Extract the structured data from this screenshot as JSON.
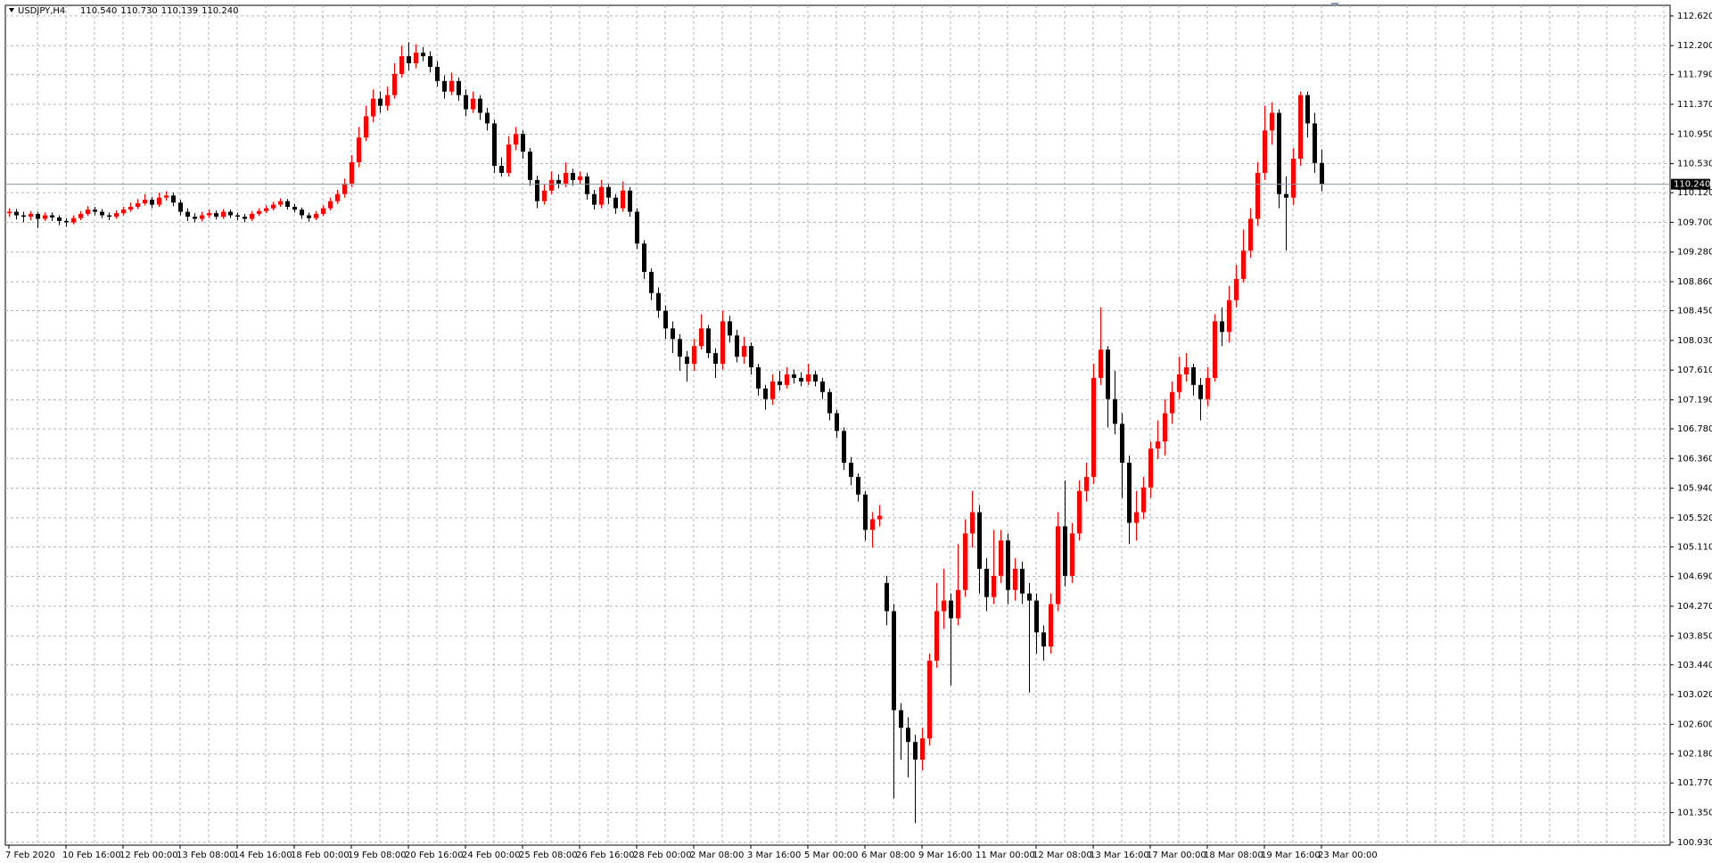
{
  "chart_data": {
    "type": "candlestick",
    "title": "USDJPY,H4",
    "ohlc_labels": [
      "110.540",
      "110.730",
      "110.139",
      "110.240"
    ],
    "up_color": "#ff0000",
    "down_color": "#000000",
    "grid": true,
    "ylim": [
      100.89,
      112.77
    ],
    "yticks": [
      {
        "value": 112.62,
        "label": "112.620"
      },
      {
        "value": 112.2,
        "label": "112.200"
      },
      {
        "value": 111.79,
        "label": "111.790"
      },
      {
        "value": 111.37,
        "label": "111.370"
      },
      {
        "value": 110.95,
        "label": "110.950"
      },
      {
        "value": 110.53,
        "label": "110.530"
      },
      {
        "value": 110.12,
        "label": "110.120"
      },
      {
        "value": 109.7,
        "label": "109.700"
      },
      {
        "value": 109.28,
        "label": "109.280"
      },
      {
        "value": 108.86,
        "label": "108.860"
      },
      {
        "value": 108.45,
        "label": "108.450"
      },
      {
        "value": 108.03,
        "label": "108.030"
      },
      {
        "value": 107.61,
        "label": "107.610"
      },
      {
        "value": 107.19,
        "label": "107.190"
      },
      {
        "value": 106.78,
        "label": "106.780"
      },
      {
        "value": 106.36,
        "label": "106.360"
      },
      {
        "value": 105.94,
        "label": "105.940"
      },
      {
        "value": 105.52,
        "label": "105.520"
      },
      {
        "value": 105.11,
        "label": "105.110"
      },
      {
        "value": 104.69,
        "label": "104.690"
      },
      {
        "value": 104.27,
        "label": "104.270"
      },
      {
        "value": 103.85,
        "label": "103.850"
      },
      {
        "value": 103.44,
        "label": "103.440"
      },
      {
        "value": 103.02,
        "label": "103.020"
      },
      {
        "value": 102.6,
        "label": "102.600"
      },
      {
        "value": 102.18,
        "label": "102.180"
      },
      {
        "value": 101.77,
        "label": "101.770"
      },
      {
        "value": 101.35,
        "label": "101.350"
      },
      {
        "value": 100.93,
        "label": "100.930"
      }
    ],
    "bid": {
      "value": 110.24,
      "label": "110.240"
    },
    "categories": [
      "7 Feb 2020",
      null,
      null,
      null,
      null,
      null,
      null,
      null,
      "10 Feb 16:00",
      null,
      null,
      null,
      null,
      null,
      null,
      null,
      "12 Feb 00:00",
      null,
      null,
      null,
      null,
      null,
      null,
      null,
      "13 Feb 08:00",
      null,
      null,
      null,
      null,
      null,
      null,
      null,
      "14 Feb 16:00",
      null,
      null,
      null,
      null,
      null,
      null,
      null,
      "18 Feb 00:00",
      null,
      null,
      null,
      null,
      null,
      null,
      null,
      "19 Feb 08:00",
      null,
      null,
      null,
      null,
      null,
      null,
      null,
      "20 Feb 16:00",
      null,
      null,
      null,
      null,
      null,
      null,
      null,
      "24 Feb 00:00",
      null,
      null,
      null,
      null,
      null,
      null,
      null,
      "25 Feb 08:00",
      null,
      null,
      null,
      null,
      null,
      null,
      null,
      "26 Feb 16:00",
      null,
      null,
      null,
      null,
      null,
      null,
      null,
      "28 Feb 00:00",
      null,
      null,
      null,
      null,
      null,
      null,
      null,
      "2 Mar 08:00",
      null,
      null,
      null,
      null,
      null,
      null,
      null,
      "3 Mar 16:00",
      null,
      null,
      null,
      null,
      null,
      null,
      null,
      "5 Mar 00:00",
      null,
      null,
      null,
      null,
      null,
      null,
      null,
      "6 Mar 08:00",
      null,
      null,
      null,
      null,
      null,
      null,
      null,
      "9 Mar 16:00",
      null,
      null,
      null,
      null,
      null,
      null,
      null,
      "11 Mar 00:00",
      null,
      null,
      null,
      null,
      null,
      null,
      null,
      "12 Mar 08:00",
      null,
      null,
      null,
      null,
      null,
      null,
      null,
      "13 Mar 16:00",
      null,
      null,
      null,
      null,
      null,
      null,
      null,
      "17 Mar 00:00",
      null,
      null,
      null,
      null,
      null,
      null,
      null,
      "18 Mar 08:00",
      null,
      null,
      null,
      null,
      null,
      null,
      null,
      "19 Mar 16:00",
      null,
      null,
      null,
      null,
      null,
      null,
      null,
      "23 Mar 00:00"
    ],
    "open": [
      109.83,
      109.85,
      109.8,
      109.78,
      109.82,
      109.75,
      109.8,
      109.77,
      109.72,
      109.7,
      109.76,
      109.82,
      109.88,
      109.85,
      109.8,
      109.78,
      109.83,
      109.88,
      109.92,
      109.97,
      110.02,
      109.95,
      110.05,
      110.08,
      109.98,
      109.85,
      109.78,
      109.75,
      109.8,
      109.83,
      109.78,
      109.85,
      109.8,
      109.78,
      109.75,
      109.82,
      109.86,
      109.9,
      109.95,
      110.0,
      109.92,
      109.88,
      109.8,
      109.76,
      109.82,
      109.9,
      110.0,
      110.1,
      110.25,
      110.55,
      110.9,
      111.2,
      111.45,
      111.35,
      111.5,
      111.8,
      112.05,
      111.95,
      112.1,
      112.05,
      111.9,
      111.7,
      111.55,
      111.7,
      111.5,
      111.3,
      111.45,
      111.25,
      111.1,
      110.5,
      110.4,
      110.8,
      110.95,
      110.7,
      110.3,
      110.0,
      110.15,
      110.3,
      110.25,
      110.4,
      110.3,
      110.35,
      110.1,
      109.95,
      110.2,
      110.05,
      109.9,
      110.15,
      109.85,
      109.4,
      109.0,
      108.7,
      108.45,
      108.2,
      108.05,
      107.8,
      107.7,
      107.95,
      108.2,
      107.85,
      107.7,
      108.3,
      108.1,
      107.8,
      107.95,
      107.65,
      107.35,
      107.2,
      107.45,
      107.4,
      107.55,
      107.5,
      107.45,
      107.55,
      107.45,
      107.3,
      107.0,
      106.75,
      106.3,
      106.1,
      105.85,
      105.35,
      105.5,
      104.6,
      104.2,
      102.8,
      102.55,
      102.35,
      102.1,
      102.4,
      103.5,
      104.2,
      104.35,
      104.1,
      104.5,
      105.3,
      105.6,
      104.8,
      104.4,
      104.7,
      105.2,
      104.5,
      104.8,
      104.45,
      104.35,
      103.9,
      103.7,
      104.3,
      105.4,
      104.7,
      105.3,
      105.9,
      106.1,
      107.5,
      107.9,
      107.2,
      106.85,
      106.3,
      105.45,
      105.6,
      105.95,
      106.5,
      106.6,
      107.0,
      107.3,
      107.55,
      107.65,
      107.4,
      107.2,
      107.5,
      108.3,
      108.15,
      108.6,
      108.9,
      109.3,
      109.75,
      110.4,
      111.0,
      111.25,
      110.1,
      110.05,
      110.6,
      111.5,
      111.1,
      110.54
    ],
    "high": [
      109.9,
      109.89,
      109.85,
      109.86,
      109.85,
      109.84,
      109.84,
      109.8,
      109.76,
      109.8,
      109.86,
      109.93,
      109.92,
      109.89,
      109.84,
      109.87,
      109.92,
      109.98,
      110.03,
      110.1,
      110.06,
      110.12,
      110.14,
      110.12,
      110.02,
      109.9,
      109.83,
      109.85,
      109.88,
      109.87,
      109.89,
      109.88,
      109.84,
      109.82,
      109.86,
      109.9,
      109.94,
      109.99,
      110.04,
      110.03,
      109.96,
      109.91,
      109.84,
      109.86,
      109.94,
      110.05,
      110.16,
      110.32,
      110.65,
      111.05,
      111.35,
      111.58,
      111.55,
      111.62,
      111.95,
      112.2,
      112.25,
      112.22,
      112.18,
      112.12,
      111.98,
      111.78,
      111.82,
      111.75,
      111.58,
      111.55,
      111.5,
      111.32,
      111.15,
      110.62,
      110.92,
      111.05,
      111.0,
      110.75,
      110.36,
      110.25,
      110.42,
      110.38,
      110.55,
      110.46,
      110.42,
      110.4,
      110.16,
      110.3,
      110.25,
      110.1,
      110.28,
      110.2,
      109.9,
      109.45,
      109.05,
      108.78,
      108.52,
      108.3,
      108.12,
      107.88,
      108.05,
      108.4,
      108.25,
      107.92,
      108.45,
      108.38,
      108.18,
      108.08,
      108.0,
      107.7,
      107.4,
      107.55,
      107.6,
      107.65,
      107.62,
      107.58,
      107.7,
      107.6,
      107.5,
      107.35,
      107.05,
      106.8,
      106.38,
      106.15,
      105.9,
      105.6,
      105.7,
      104.7,
      104.3,
      102.9,
      102.7,
      102.45,
      102.55,
      103.6,
      104.6,
      104.8,
      104.45,
      105.15,
      105.5,
      105.9,
      105.7,
      104.95,
      105.35,
      105.35,
      105.3,
      104.95,
      104.9,
      104.6,
      104.45,
      104.0,
      104.45,
      105.6,
      106.05,
      105.45,
      106.05,
      106.3,
      107.7,
      108.5,
      107.95,
      107.6,
      107.0,
      106.4,
      105.9,
      106.1,
      106.6,
      106.9,
      107.2,
      107.45,
      107.8,
      107.85,
      107.7,
      107.5,
      107.65,
      108.4,
      108.5,
      108.8,
      109.1,
      109.6,
      109.9,
      110.55,
      111.35,
      111.4,
      111.3,
      110.35,
      110.75,
      111.55,
      111.55,
      111.25,
      110.73
    ],
    "low": [
      109.78,
      109.74,
      109.7,
      109.73,
      109.62,
      109.72,
      109.72,
      109.66,
      109.64,
      109.67,
      109.73,
      109.79,
      109.8,
      109.76,
      109.73,
      109.75,
      109.8,
      109.85,
      109.89,
      109.94,
      109.9,
      109.92,
      110.01,
      109.93,
      109.8,
      109.72,
      109.7,
      109.71,
      109.76,
      109.74,
      109.75,
      109.76,
      109.73,
      109.7,
      109.72,
      109.79,
      109.83,
      109.87,
      109.92,
      109.88,
      109.84,
      109.75,
      109.71,
      109.73,
      109.79,
      109.87,
      109.96,
      110.05,
      110.2,
      110.48,
      110.85,
      111.12,
      111.25,
      111.28,
      111.45,
      111.75,
      111.85,
      111.88,
      111.98,
      111.82,
      111.62,
      111.45,
      111.5,
      111.42,
      111.2,
      111.25,
      111.15,
      111.0,
      110.4,
      110.35,
      110.35,
      110.72,
      110.6,
      110.22,
      109.9,
      109.95,
      110.1,
      110.18,
      110.2,
      110.22,
      110.25,
      110.02,
      109.88,
      109.9,
      109.96,
      109.82,
      109.85,
      109.78,
      109.32,
      108.9,
      108.6,
      108.35,
      108.05,
      107.85,
      107.6,
      107.45,
      107.6,
      107.9,
      107.78,
      107.5,
      107.62,
      108.0,
      107.72,
      107.7,
      107.55,
      107.25,
      107.05,
      107.12,
      107.32,
      107.35,
      107.42,
      107.38,
      107.4,
      107.38,
      107.2,
      106.9,
      106.65,
      106.2,
      105.98,
      105.75,
      105.2,
      105.1,
      105.4,
      104.0,
      101.55,
      102.1,
      101.85,
      101.2,
      101.95,
      102.3,
      103.4,
      103.95,
      103.15,
      104.0,
      104.4,
      105.1,
      104.45,
      104.2,
      104.3,
      104.6,
      104.3,
      104.35,
      104.3,
      103.05,
      103.6,
      103.5,
      103.6,
      104.2,
      104.55,
      104.6,
      105.2,
      105.75,
      106.0,
      107.4,
      106.8,
      106.7,
      105.8,
      105.15,
      105.2,
      105.5,
      105.8,
      106.35,
      106.4,
      106.85,
      107.2,
      107.45,
      107.25,
      106.9,
      107.1,
      107.45,
      107.95,
      108.0,
      108.5,
      108.85,
      109.2,
      109.65,
      110.3,
      110.8,
      109.9,
      109.3,
      109.95,
      110.5,
      110.9,
      110.4,
      110.139
    ],
    "close": [
      109.85,
      109.8,
      109.78,
      109.82,
      109.75,
      109.8,
      109.77,
      109.72,
      109.7,
      109.76,
      109.82,
      109.88,
      109.85,
      109.8,
      109.78,
      109.83,
      109.88,
      109.92,
      109.97,
      110.02,
      109.95,
      110.05,
      110.08,
      109.98,
      109.85,
      109.78,
      109.75,
      109.8,
      109.83,
      109.78,
      109.85,
      109.8,
      109.78,
      109.75,
      109.82,
      109.86,
      109.9,
      109.95,
      110.0,
      109.92,
      109.88,
      109.8,
      109.76,
      109.82,
      109.9,
      110.0,
      110.1,
      110.25,
      110.55,
      110.9,
      111.2,
      111.45,
      111.35,
      111.5,
      111.8,
      112.05,
      111.95,
      112.1,
      112.05,
      111.9,
      111.7,
      111.55,
      111.7,
      111.5,
      111.3,
      111.45,
      111.25,
      111.1,
      110.5,
      110.4,
      110.8,
      110.95,
      110.7,
      110.3,
      110.0,
      110.15,
      110.3,
      110.25,
      110.4,
      110.3,
      110.35,
      110.1,
      109.95,
      110.2,
      110.05,
      109.9,
      110.15,
      109.85,
      109.4,
      109.0,
      108.7,
      108.45,
      108.2,
      108.05,
      107.8,
      107.7,
      107.95,
      108.2,
      107.85,
      107.7,
      108.3,
      108.1,
      107.8,
      107.95,
      107.65,
      107.35,
      107.2,
      107.45,
      107.4,
      107.55,
      107.5,
      107.45,
      107.55,
      107.45,
      107.3,
      107.0,
      106.75,
      106.3,
      106.1,
      105.85,
      105.35,
      105.5,
      105.55,
      104.2,
      102.8,
      102.55,
      102.35,
      102.1,
      102.4,
      103.5,
      104.2,
      104.35,
      104.1,
      104.5,
      105.3,
      105.6,
      104.8,
      104.4,
      104.7,
      105.2,
      104.5,
      104.8,
      104.45,
      104.35,
      103.9,
      103.7,
      104.3,
      105.4,
      104.7,
      105.3,
      105.9,
      106.1,
      107.5,
      107.9,
      107.2,
      106.85,
      106.3,
      105.45,
      105.6,
      105.95,
      106.5,
      106.6,
      107.0,
      107.3,
      107.55,
      107.65,
      107.4,
      107.2,
      107.5,
      108.3,
      108.15,
      108.6,
      108.9,
      109.3,
      109.75,
      110.4,
      111.0,
      111.25,
      110.1,
      110.05,
      110.6,
      111.5,
      111.1,
      110.54,
      110.24
    ]
  }
}
